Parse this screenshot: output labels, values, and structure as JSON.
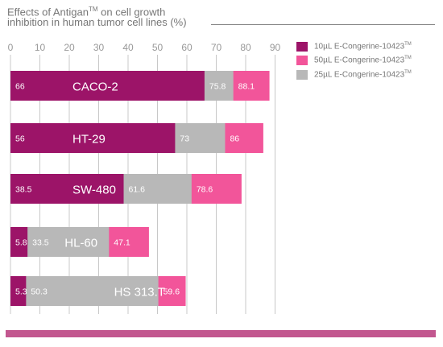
{
  "chart_data": {
    "type": "bar",
    "stacked": true,
    "orientation": "horizontal",
    "title_line1": "Effects of Antigan",
    "title_tm": "TM",
    "title_line1_rest": " on cell growth",
    "title_line2": "inhibition in human tumor cell lines (%)",
    "xlim": [
      0,
      90
    ],
    "xticks": [
      "0",
      "10",
      "20",
      "30",
      "40",
      "50",
      "60",
      "70",
      "80",
      "90"
    ],
    "legend_position": "top-right",
    "categories": [
      "CACO-2",
      "HT-29",
      "SW-480",
      "HL-60",
      "HS 313.T"
    ],
    "bars": [
      {
        "category": "CACO-2",
        "segments": [
          {
            "series": 0,
            "value": 66,
            "label": "66"
          },
          {
            "series": 2,
            "value": 75.8,
            "label": "75.8"
          },
          {
            "series": 1,
            "value": 88.1,
            "label": "88.1"
          }
        ]
      },
      {
        "category": "HT-29",
        "segments": [
          {
            "series": 0,
            "value": 56,
            "label": "56"
          },
          {
            "series": 2,
            "value": 73,
            "label": "73"
          },
          {
            "series": 1,
            "value": 86,
            "label": "86"
          }
        ]
      },
      {
        "category": "SW-480",
        "segments": [
          {
            "series": 0,
            "value": 38.5,
            "label": "38.5"
          },
          {
            "series": 2,
            "value": 61.6,
            "label": "61.6"
          },
          {
            "series": 1,
            "value": 78.6,
            "label": "78.6"
          }
        ]
      },
      {
        "category": "HL-60",
        "segments": [
          {
            "series": 0,
            "value": 5.8,
            "label": "5.8"
          },
          {
            "series": 2,
            "value": 33.5,
            "label": "33.5"
          },
          {
            "series": 1,
            "value": 47.1,
            "label": "47.1"
          }
        ]
      },
      {
        "category": "HS 313.T",
        "segments": [
          {
            "series": 0,
            "value": 5.3,
            "label": "5.3"
          },
          {
            "series": 2,
            "value": 50.3,
            "label": "50.3"
          },
          {
            "series": 1,
            "value": 59.6,
            "label": "59.6"
          }
        ]
      }
    ],
    "series": [
      {
        "name": "10µL E-Congerine-10423",
        "tm": "TM",
        "color": "#9c1468"
      },
      {
        "name": "50µL E-Congerine-10423",
        "tm": "TM",
        "color": "#f2559a"
      },
      {
        "name": "25µL E-Congerine-10423",
        "tm": "TM",
        "color": "#b8b8b8"
      }
    ]
  },
  "colors": {
    "grid": "#c8c8c8",
    "tick_text": "#999999",
    "title_text": "#777777",
    "band": "#c2578f"
  }
}
